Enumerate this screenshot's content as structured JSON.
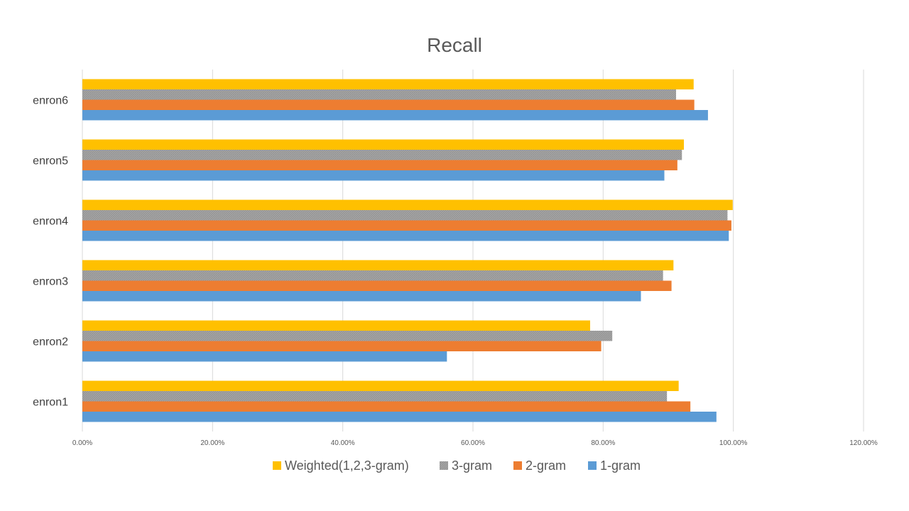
{
  "chart_data": {
    "type": "bar",
    "orientation": "horizontal",
    "title": "Recall",
    "xlabel": "",
    "ylabel": "",
    "categories": [
      "enron1",
      "enron2",
      "enron3",
      "enron4",
      "enron5",
      "enron6"
    ],
    "xlim": [
      0,
      1.2
    ],
    "x_ticks": [
      "0.00%",
      "20.00%",
      "40.00%",
      "60.00%",
      "80.00%",
      "100.00%",
      "120.00%"
    ],
    "grid": true,
    "legend_position": "bottom",
    "series": [
      {
        "name": "1-gram",
        "color": "#5B9BD5",
        "values": [
          0.974,
          0.56,
          0.858,
          0.993,
          0.894,
          0.961
        ]
      },
      {
        "name": "2-gram",
        "color": "#ED7D31",
        "values": [
          0.934,
          0.797,
          0.905,
          0.997,
          0.914,
          0.94
        ]
      },
      {
        "name": "3-gram",
        "color": "#A5A5A5",
        "values": [
          0.898,
          0.814,
          0.892,
          0.991,
          0.921,
          0.912
        ]
      },
      {
        "name": "Weighted(1,2,3-gram)",
        "color": "#FFC000",
        "values": [
          0.916,
          0.78,
          0.908,
          0.999,
          0.924,
          0.939
        ]
      }
    ],
    "legend_order": [
      "Weighted(1,2,3-gram)",
      "3-gram",
      "2-gram",
      "1-gram"
    ]
  }
}
